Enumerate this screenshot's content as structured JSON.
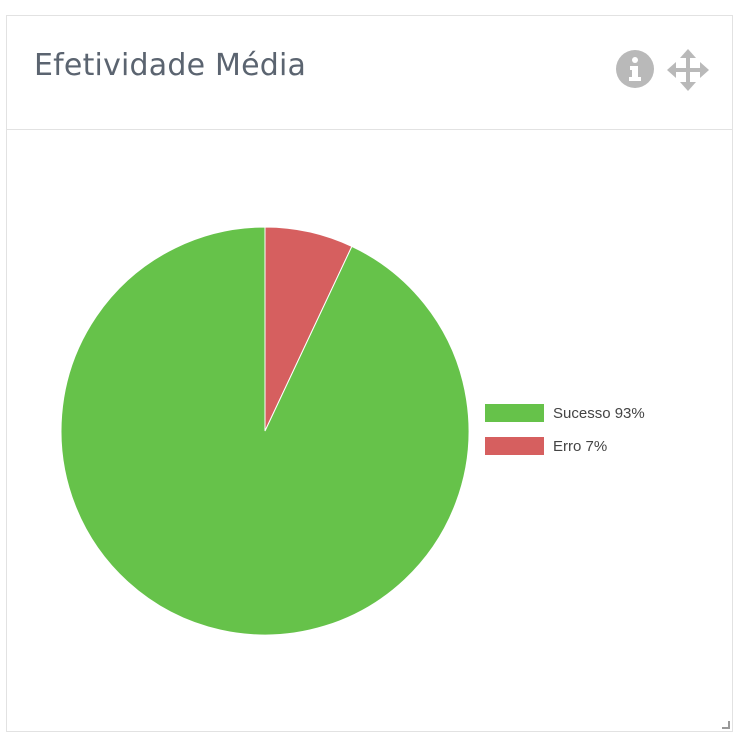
{
  "header": {
    "title": "Efetividade Média",
    "info_icon": "info-circle-icon",
    "move_icon": "arrows-move-icon"
  },
  "chart_data": {
    "type": "pie",
    "title": "",
    "categories": [
      "Sucesso",
      "Erro"
    ],
    "values": [
      93,
      7
    ],
    "colors": [
      "#66c24a",
      "#d65f5f"
    ],
    "legend": {
      "placement": "right",
      "entries": [
        "Sucesso 93%",
        "Erro 7%"
      ]
    }
  }
}
